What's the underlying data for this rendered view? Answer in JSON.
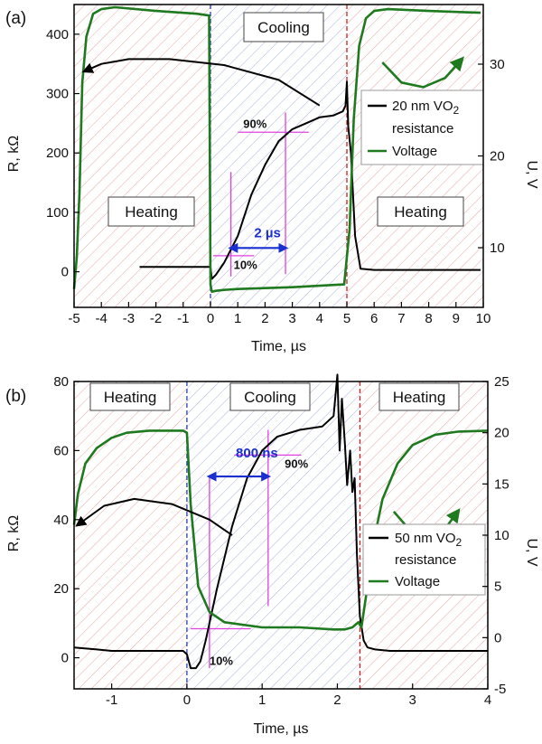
{
  "chart_data": [
    {
      "type": "line",
      "panel_label": "(a)",
      "xlabel": "Time, µs",
      "ylabel_left": "R, kΩ",
      "ylabel_right": "U, V",
      "xlim": [
        -5,
        10
      ],
      "ylim_left": [
        -60,
        450
      ],
      "ylim_right": [
        3.5,
        36.5
      ],
      "xticks": [
        -5,
        -4,
        -3,
        -2,
        -1,
        0,
        1,
        2,
        3,
        4,
        5,
        6,
        7,
        8,
        9,
        10
      ],
      "yticks_left": [
        0,
        100,
        200,
        300,
        400
      ],
      "yticks_right": [
        10,
        20,
        30
      ],
      "regions": [
        {
          "label": "Heating",
          "from": -5,
          "to": 0
        },
        {
          "label": "Cooling",
          "from": 0,
          "to": 5
        },
        {
          "label": "Heating",
          "from": 5,
          "to": 10
        }
      ],
      "vlines": [
        {
          "x": 0,
          "color": "#2a3fb0"
        },
        {
          "x": 5,
          "color": "#d22020"
        }
      ],
      "series": [
        {
          "name": "20 nm VO2 resistance",
          "axis": "left",
          "color": "#000000",
          "x": [
            -2.6,
            -1,
            0,
            0.05,
            0.2,
            0.5,
            1,
            1.5,
            2,
            2.5,
            3,
            3.5,
            4,
            4.5,
            4.85,
            4.95,
            5.0,
            5.05,
            5.15,
            5.3,
            5.5,
            6,
            8,
            9.9
          ],
          "y": [
            8,
            8,
            8,
            -12,
            -5,
            15,
            60,
            130,
            180,
            220,
            240,
            250,
            260,
            263,
            270,
            280,
            320,
            245,
            200,
            60,
            5,
            3,
            3,
            3
          ]
        },
        {
          "name": "Voltage",
          "axis": "right",
          "color": "#1f7a1f",
          "x": [
            -5,
            -4.9,
            -4.8,
            -4.7,
            -4.55,
            -4.3,
            -4,
            -3.5,
            -2,
            -0.5,
            -0.05,
            0,
            0.05,
            0.2,
            0.5,
            1,
            3,
            4.9,
            5.1,
            5.25,
            5.45,
            5.7,
            6,
            6.5,
            8,
            9.9
          ],
          "y": [
            5.5,
            9,
            16,
            28,
            33,
            35.5,
            36,
            36.2,
            35.8,
            35.5,
            35.3,
            6,
            5.2,
            5.3,
            5.4,
            5.5,
            5.7,
            6,
            12,
            24,
            32,
            35,
            35.8,
            36,
            35.8,
            35.6
          ]
        }
      ],
      "annotations": [
        {
          "text": "90%",
          "x": 1.2,
          "y": 242
        },
        {
          "text": "10%",
          "x": 0.85,
          "y": 5
        },
        {
          "text": "2 µs",
          "x": 1.6,
          "y": 58
        }
      ],
      "arrows": [
        {
          "kind": "curved",
          "axis": "left",
          "x": [
            4.0,
            2.5,
            0.5,
            -1.5,
            -3.0,
            -4.0,
            -4.6
          ],
          "y": [
            280,
            323,
            348,
            358,
            358,
            350,
            338
          ]
        },
        {
          "kind": "curved",
          "axis": "right",
          "x": [
            6.3,
            7.0,
            7.8,
            8.6,
            9.2
          ],
          "y": [
            30.2,
            28.0,
            27.5,
            28.5,
            30.5
          ]
        },
        {
          "kind": "double",
          "axis": "left",
          "x": [
            0.75,
            2.75
          ],
          "y": [
            40,
            40
          ]
        }
      ],
      "guides": [
        {
          "axis": "left",
          "x": [
            0.75,
            0.75
          ],
          "y": [
            -8,
            168
          ]
        },
        {
          "axis": "left",
          "x": [
            2.75,
            2.75
          ],
          "y": [
            -4,
            268
          ]
        },
        {
          "axis": "left",
          "x": [
            0.1,
            1.6
          ],
          "y": [
            27,
            27
          ]
        },
        {
          "axis": "left",
          "x": [
            1.0,
            3.6
          ],
          "y": [
            235,
            235
          ]
        }
      ],
      "legend": {
        "position": "right"
      }
    },
    {
      "type": "line",
      "panel_label": "(b)",
      "xlabel": "Time, µs",
      "ylabel_left": "R, kΩ",
      "ylabel_right": "U, V",
      "xlim": [
        -1.5,
        4
      ],
      "ylim_left": [
        -9,
        80
      ],
      "ylim_right": [
        -5,
        25
      ],
      "xticks": [
        -1,
        0,
        1,
        2,
        3,
        4
      ],
      "yticks_left": [
        0,
        20,
        40,
        60,
        80
      ],
      "yticks_right": [
        -5,
        0,
        5,
        10,
        15,
        20,
        25
      ],
      "regions": [
        {
          "label": "Heating",
          "from": -1.5,
          "to": 0
        },
        {
          "label": "Cooling",
          "from": 0,
          "to": 2.3
        },
        {
          "label": "Heating",
          "from": 2.3,
          "to": 4
        }
      ],
      "vlines": [
        {
          "x": 0,
          "color": "#2a3fb0"
        },
        {
          "x": 2.3,
          "color": "#d22020"
        }
      ],
      "series": [
        {
          "name": "50 nm VO2 resistance",
          "axis": "left",
          "color": "#000000",
          "x": [
            -1.5,
            -1.2,
            -1,
            -0.5,
            -0.05,
            0,
            0.05,
            0.12,
            0.18,
            0.25,
            0.4,
            0.6,
            0.8,
            1,
            1.2,
            1.5,
            1.8,
            1.95,
            2.0,
            2.03,
            2.06,
            2.1,
            2.13,
            2.17,
            2.2,
            2.23,
            2.26,
            2.3,
            2.35,
            2.4,
            2.5,
            2.7,
            3,
            4
          ],
          "y": [
            3,
            2.4,
            2,
            2,
            2,
            1,
            -3,
            -3,
            -1,
            5,
            20,
            38,
            52,
            60,
            64,
            66,
            67,
            70,
            82,
            60,
            75,
            62,
            50,
            60,
            48,
            52,
            30,
            12,
            5,
            3,
            2.4,
            2,
            2,
            2
          ]
        },
        {
          "name": "Voltage",
          "axis": "right",
          "color": "#1f7a1f",
          "x": [
            -1.5,
            -1.45,
            -1.35,
            -1.2,
            -1.0,
            -0.8,
            -0.5,
            -0.05,
            0,
            0.05,
            0.15,
            0.3,
            0.5,
            1,
            1.5,
            1.95,
            2.1,
            2.2,
            2.28,
            2.32,
            2.4,
            2.5,
            2.6,
            2.8,
            3,
            3.3,
            3.6,
            4
          ],
          "y": [
            11,
            14,
            17,
            18.5,
            19.5,
            20,
            20.2,
            20.2,
            20,
            13,
            5,
            2.5,
            1.5,
            1,
            1,
            0.8,
            0.8,
            1,
            1.5,
            1,
            5,
            10,
            13.5,
            17,
            18.8,
            19.8,
            20.1,
            20.2
          ]
        }
      ],
      "annotations": [
        {
          "text": "90%",
          "x": 1.3,
          "y": 55
        },
        {
          "text": "10%",
          "x": 0.3,
          "y": -2
        },
        {
          "text": "800 ns",
          "x": 0.65,
          "y": 58
        }
      ],
      "arrows": [
        {
          "kind": "curved",
          "axis": "left",
          "x": [
            0.6,
            0.3,
            -0.2,
            -0.7,
            -1.1,
            -1.45
          ],
          "y": [
            35.5,
            40,
            44.5,
            46,
            44,
            38.5
          ]
        },
        {
          "kind": "curved",
          "axis": "right",
          "x": [
            2.75,
            2.95,
            3.2,
            3.45,
            3.6
          ],
          "y": [
            12.3,
            10.6,
            10.0,
            10.8,
            12.3
          ]
        },
        {
          "kind": "double",
          "axis": "left",
          "x": [
            0.3,
            1.08
          ],
          "y": [
            52.5,
            52.5
          ]
        }
      ],
      "guides": [
        {
          "axis": "left",
          "x": [
            0.3,
            0.3
          ],
          "y": [
            -3,
            52.5
          ]
        },
        {
          "axis": "left",
          "x": [
            1.08,
            1.08
          ],
          "y": [
            15,
            66
          ]
        },
        {
          "axis": "left",
          "x": [
            0.05,
            0.85
          ],
          "y": [
            8.4,
            8.4
          ]
        },
        {
          "axis": "left",
          "x": [
            0.63,
            1.52
          ],
          "y": [
            58.7,
            58.7
          ]
        }
      ],
      "legend": {
        "position": "right"
      }
    }
  ]
}
